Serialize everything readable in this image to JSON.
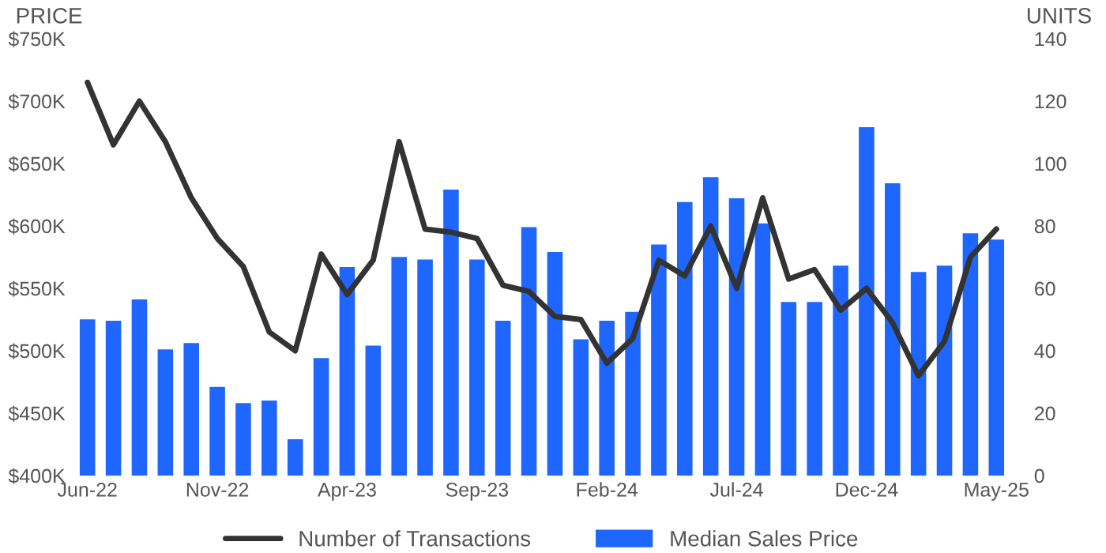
{
  "chart_data": {
    "type": "bar",
    "ylabel": "PRICE",
    "y2label": "UNITS",
    "categories": [
      "Jun-22",
      null,
      null,
      null,
      null,
      "Nov-22",
      null,
      null,
      null,
      null,
      "Apr-23",
      null,
      null,
      null,
      null,
      "Sep-23",
      null,
      null,
      null,
      null,
      "Feb-24",
      null,
      null,
      null,
      null,
      "Jul-24",
      null,
      null,
      null,
      null,
      "Dec-24",
      null,
      null,
      null,
      null,
      "May-25"
    ],
    "series": [
      {
        "name": "Median Sales Price",
        "color": "#1f66ff",
        "values": [
          526,
          525,
          542,
          502,
          507,
          472,
          459,
          461,
          430,
          495,
          568,
          505,
          576,
          574,
          630,
          574,
          525,
          600,
          580,
          510,
          525,
          532,
          586,
          620,
          640,
          623,
          603,
          540,
          540,
          569,
          680,
          635,
          564,
          569,
          595,
          590
        ]
      },
      {
        "name": "Number of Transactions",
        "type": "line",
        "axis": "y2",
        "color": "#333333",
        "values": [
          126,
          106,
          120,
          107,
          89,
          76,
          67,
          46,
          40,
          71,
          58,
          69,
          107,
          79,
          78,
          76,
          61,
          59,
          51,
          50,
          36,
          44,
          69,
          64,
          80,
          60,
          89,
          63,
          66,
          53,
          60,
          49,
          32,
          43,
          70,
          79
        ]
      }
    ],
    "ylim": [
      400,
      750
    ],
    "yticks": [
      {
        "value": 400,
        "label": "$400K"
      },
      {
        "value": 450,
        "label": "$450K"
      },
      {
        "value": 500,
        "label": "$500K"
      },
      {
        "value": 550,
        "label": "$550K"
      },
      {
        "value": 600,
        "label": "$600K"
      },
      {
        "value": 650,
        "label": "$650K"
      },
      {
        "value": 700,
        "label": "$700K"
      },
      {
        "value": 750,
        "label": "$750K"
      }
    ],
    "y2lim": [
      0,
      140
    ],
    "y2ticks": [
      0,
      20,
      40,
      60,
      80,
      100,
      120,
      140
    ],
    "legend": "bottom",
    "grid": false,
    "line_style": "solid",
    "marker": "none"
  }
}
